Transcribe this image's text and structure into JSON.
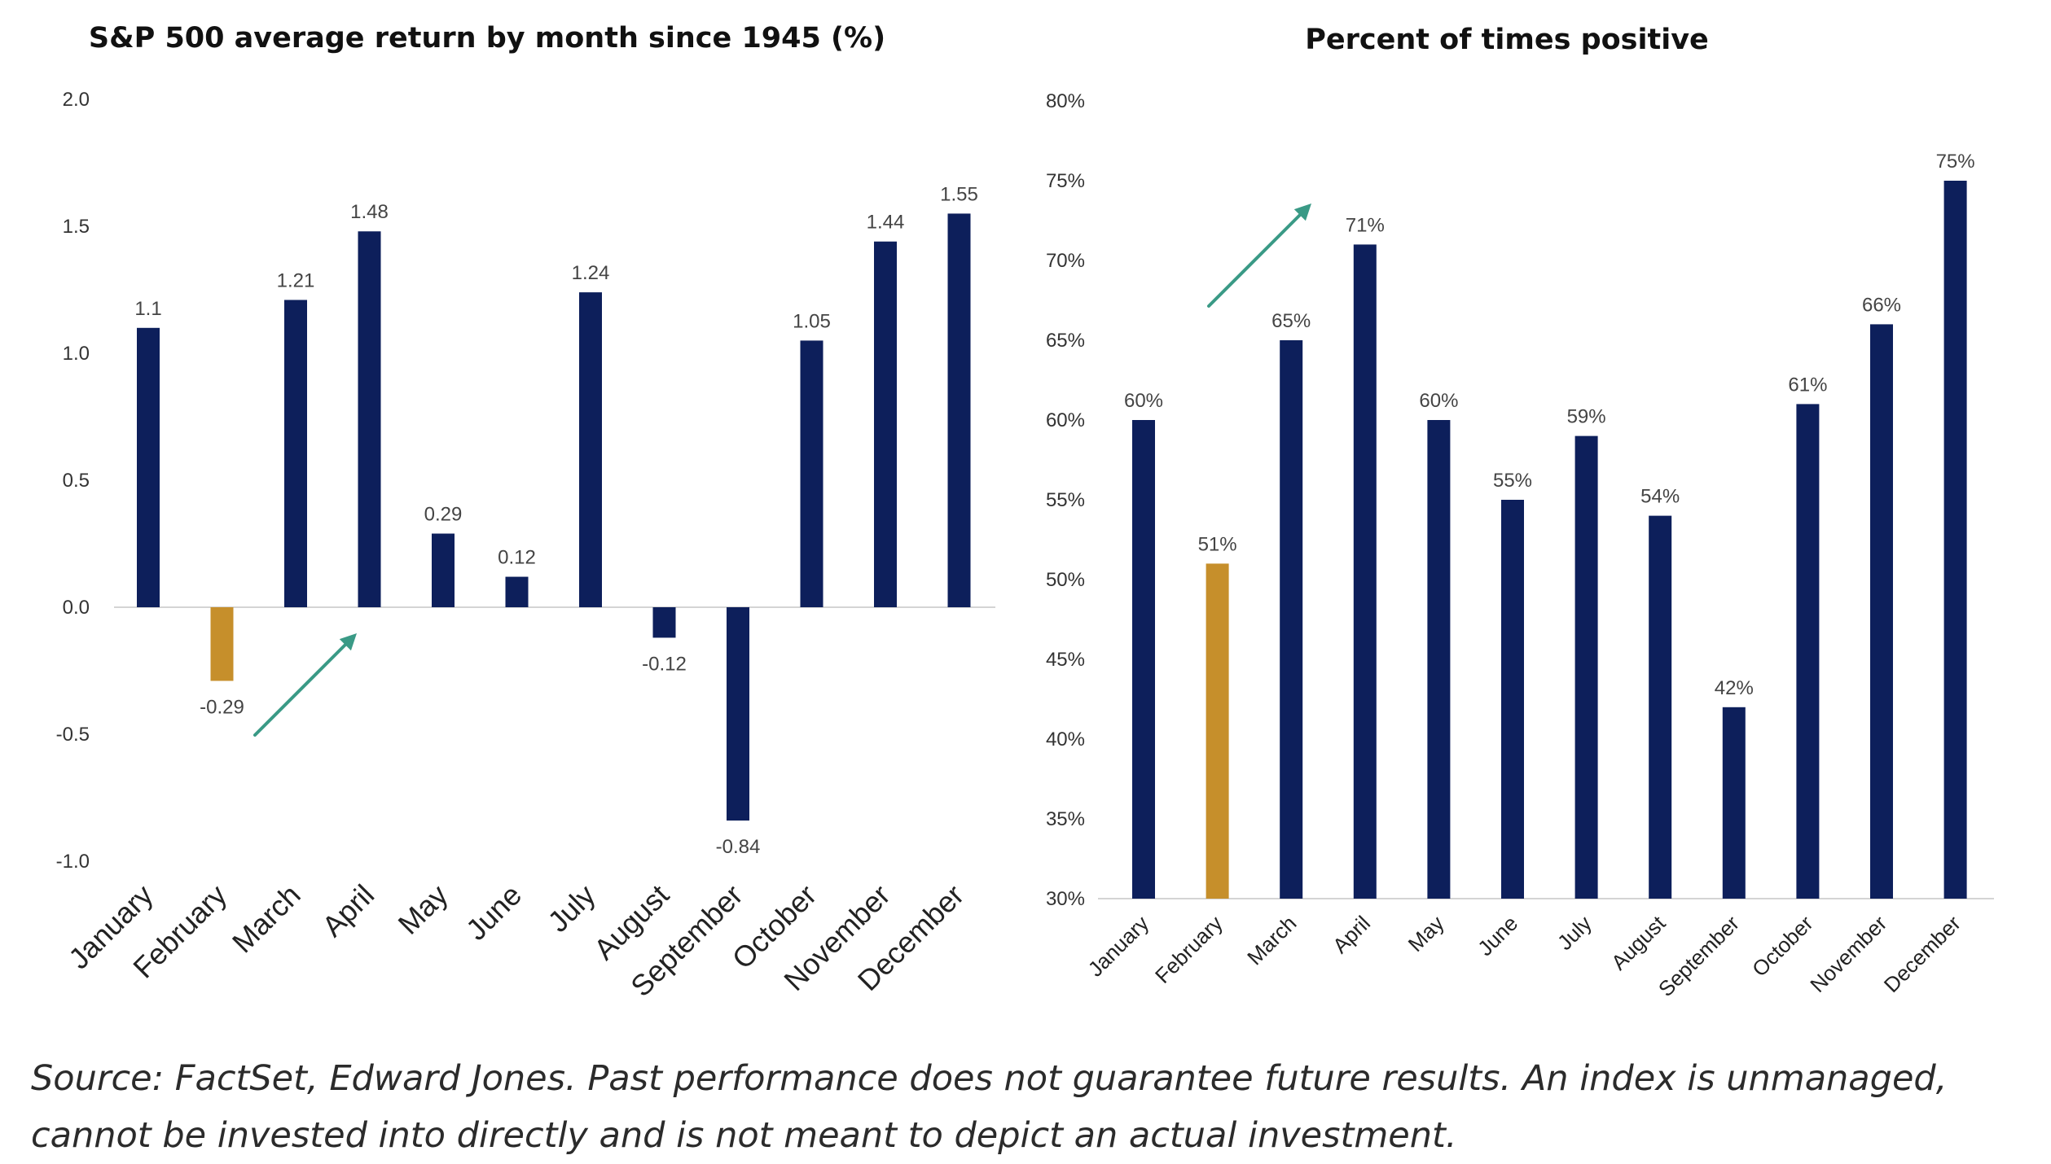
{
  "colors": {
    "bar_default": "#0d1f5b",
    "bar_highlight": "#c68f2b",
    "arrow": "#3a9a86",
    "axis": "#d4d4d4"
  },
  "chart_data": [
    {
      "type": "bar",
      "title": "S&P 500 average return by month since 1945 (%)",
      "xlabel": "",
      "ylabel": "",
      "ylim": [
        -1.0,
        2.0
      ],
      "yticks": [
        "2.0",
        "1.5",
        "1.0",
        "0.5",
        "0.0",
        "-0.5",
        "-1.0"
      ],
      "ytick_values": [
        2.0,
        1.5,
        1.0,
        0.5,
        0.0,
        -0.5,
        -1.0
      ],
      "categories": [
        "January",
        "February",
        "March",
        "April",
        "May",
        "June",
        "July",
        "August",
        "September",
        "October",
        "November",
        "December"
      ],
      "values": [
        1.1,
        -0.29,
        1.21,
        1.48,
        0.29,
        0.12,
        1.24,
        -0.12,
        -0.84,
        1.05,
        1.44,
        1.55
      ],
      "value_labels": [
        "1.1",
        "-0.29",
        "1.21",
        "1.48",
        "0.29",
        "0.12",
        "1.24",
        "-0.12",
        "-0.84",
        "1.05",
        "1.44",
        "1.55"
      ],
      "highlight": [
        "February"
      ],
      "annotation": "arrow from February rising toward April",
      "grid": false,
      "legend": "none"
    },
    {
      "type": "bar",
      "title": "Percent of times positive",
      "xlabel": "",
      "ylabel": "",
      "ylim": [
        30,
        80
      ],
      "yticks": [
        "80%",
        "75%",
        "70%",
        "65%",
        "60%",
        "55%",
        "50%",
        "45%",
        "40%",
        "35%",
        "30%"
      ],
      "ytick_values": [
        80,
        75,
        70,
        65,
        60,
        55,
        50,
        45,
        40,
        35,
        30
      ],
      "categories": [
        "January",
        "February",
        "March",
        "April",
        "May",
        "June",
        "July",
        "August",
        "September",
        "October",
        "November",
        "December"
      ],
      "values": [
        60,
        51,
        65,
        71,
        60,
        55,
        59,
        54,
        42,
        61,
        66,
        75
      ],
      "value_labels": [
        "60%",
        "51%",
        "65%",
        "71%",
        "60%",
        "55%",
        "59%",
        "54%",
        "42%",
        "61%",
        "66%",
        "75%"
      ],
      "highlight": [
        "February"
      ],
      "annotation": "arrow from February rising toward April",
      "grid": false,
      "legend": "none"
    }
  ],
  "source_note": "Source: FactSet, Edward Jones. Past performance does not guarantee future results. An index is unmanaged, cannot be invested into directly and is not meant to depict an actual investment."
}
